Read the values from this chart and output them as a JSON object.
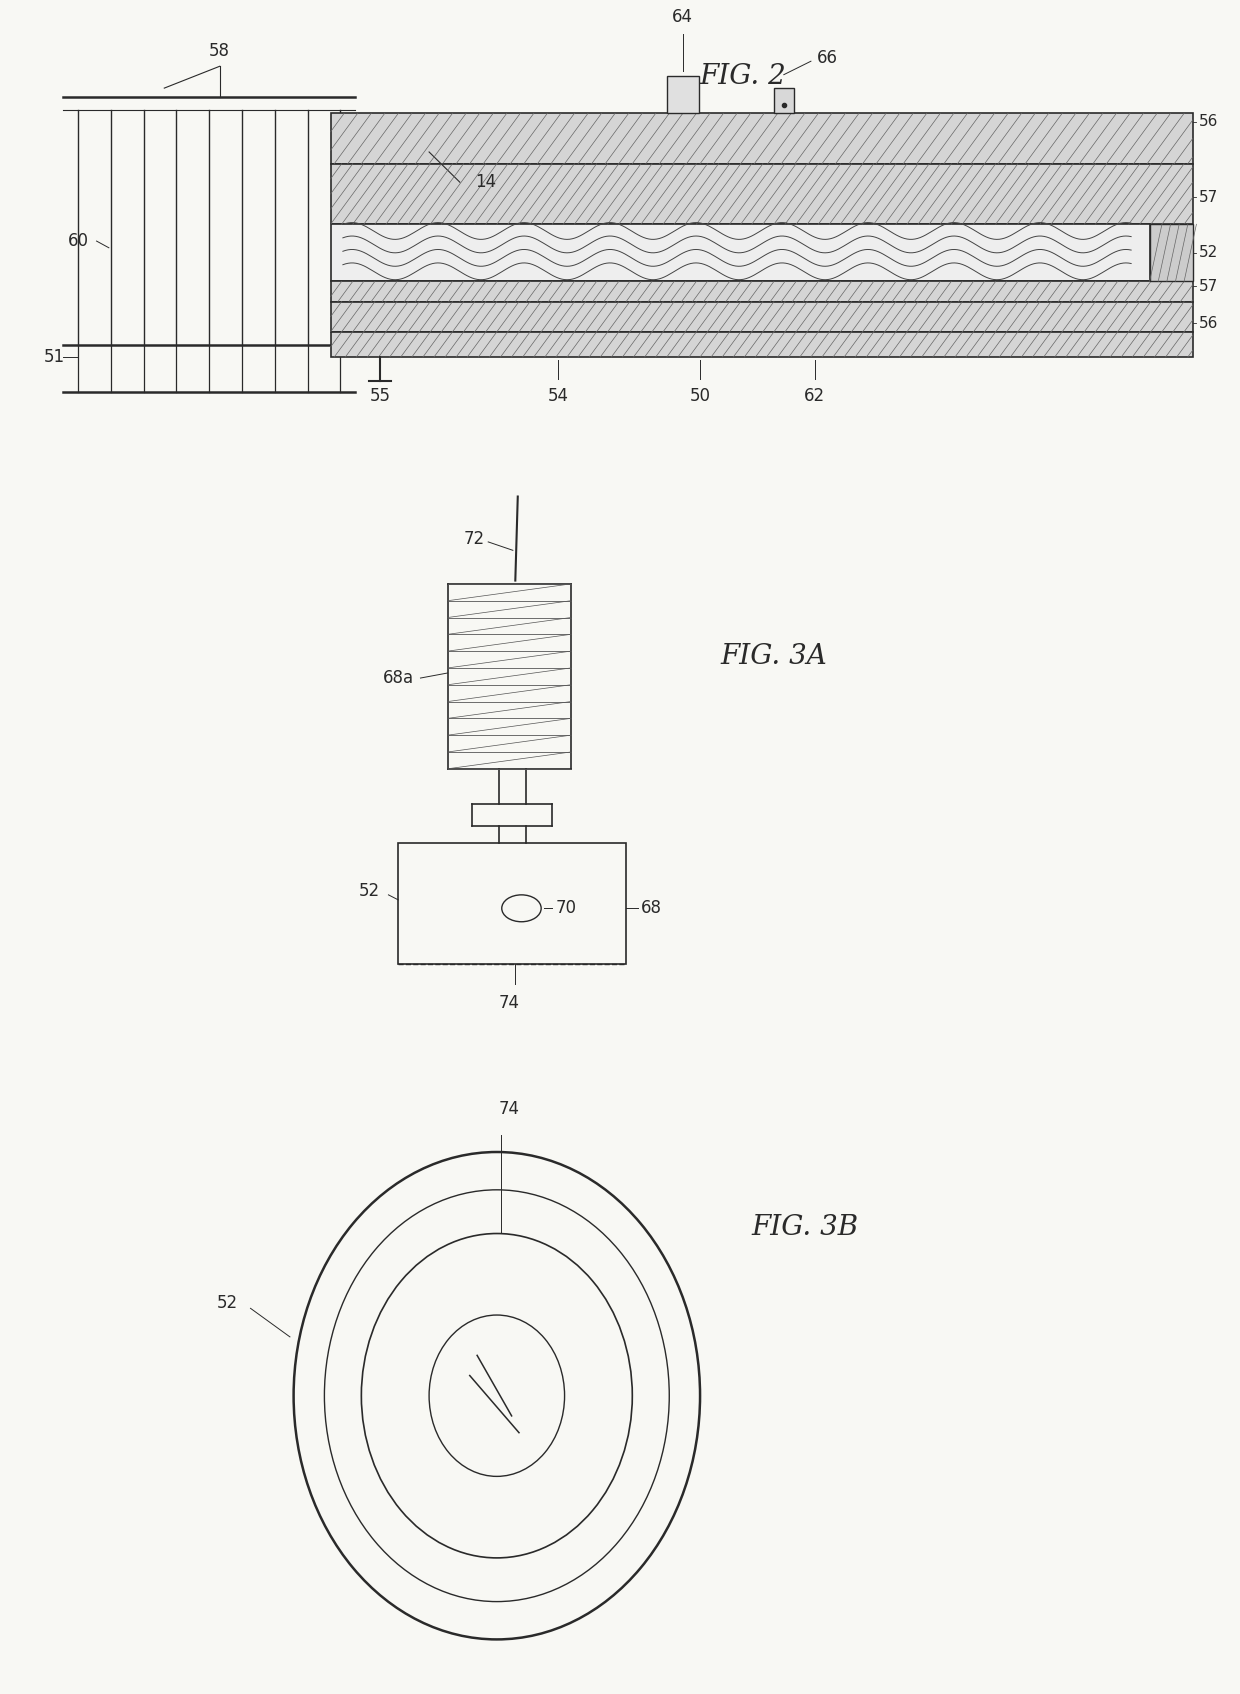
{
  "bg_color": "#f8f8f4",
  "line_color": "#2a2a2a",
  "fig2_title": "FIG. 2",
  "fig3a_title": "FIG. 3A",
  "fig3b_title": "FIG. 3B",
  "lw_main": 1.2,
  "lw_thick": 1.8,
  "label_fontsize": 12,
  "title_fontsize": 20
}
